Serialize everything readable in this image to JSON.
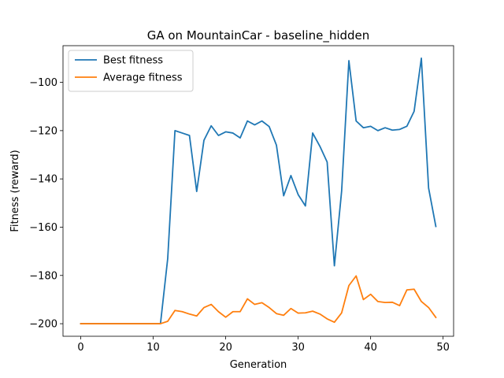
{
  "chart_data": {
    "type": "line",
    "title": "GA on MountainCar - baseline_hidden",
    "xlabel": "Generation",
    "ylabel": "Fitness (reward)",
    "xlim": [
      -2.45,
      51.45
    ],
    "ylim": [
      -205.2,
      -84.8
    ],
    "xticks": [
      0,
      10,
      20,
      30,
      40,
      50
    ],
    "yticks": [
      -200,
      -180,
      -160,
      -140,
      -120,
      -100
    ],
    "grid": false,
    "legend_position": "top-left",
    "x": [
      0,
      1,
      2,
      3,
      4,
      5,
      6,
      7,
      8,
      9,
      10,
      11,
      12,
      13,
      14,
      15,
      16,
      17,
      18,
      19,
      20,
      21,
      22,
      23,
      24,
      25,
      26,
      27,
      28,
      29,
      30,
      31,
      32,
      33,
      34,
      35,
      36,
      37,
      38,
      39,
      40,
      41,
      42,
      43,
      44,
      45,
      46,
      47,
      48,
      49
    ],
    "series": [
      {
        "name": "Best fitness",
        "color": "#1f77b4",
        "values": [
          -200,
          -200,
          -200,
          -200,
          -200,
          -200,
          -200,
          -200,
          -200,
          -200,
          -200,
          -200,
          -173,
          -120,
          -121,
          -122,
          -145.2,
          -124,
          -118,
          -122,
          -120.5,
          -121,
          -123,
          -116,
          -117.6,
          -116,
          -118.3,
          -126,
          -147,
          -138.6,
          -146.5,
          -151.2,
          -121,
          -126.5,
          -133,
          -176,
          -145,
          -91,
          -116,
          -118.8,
          -118.2,
          -120,
          -118.8,
          -119.8,
          -119.5,
          -118.2,
          -112,
          -90,
          -143.8,
          -159.7
        ]
      },
      {
        "name": "Average fitness",
        "color": "#ff7f0e",
        "values": [
          -200,
          -200,
          -200,
          -200,
          -200,
          -200,
          -200,
          -200,
          -200,
          -200,
          -200,
          -200,
          -199,
          -194.5,
          -195,
          -196,
          -196.8,
          -193.3,
          -192,
          -195,
          -197.3,
          -195,
          -195,
          -189.7,
          -192,
          -191.3,
          -193.3,
          -195.8,
          -196.5,
          -193.7,
          -195.6,
          -195.5,
          -194.8,
          -196,
          -198,
          -199.4,
          -195.5,
          -184.2,
          -180.2,
          -190,
          -187.8,
          -190.8,
          -191.2,
          -191.1,
          -192.5,
          -186,
          -185.7,
          -190.8,
          -193.3,
          -197.4
        ]
      }
    ]
  }
}
